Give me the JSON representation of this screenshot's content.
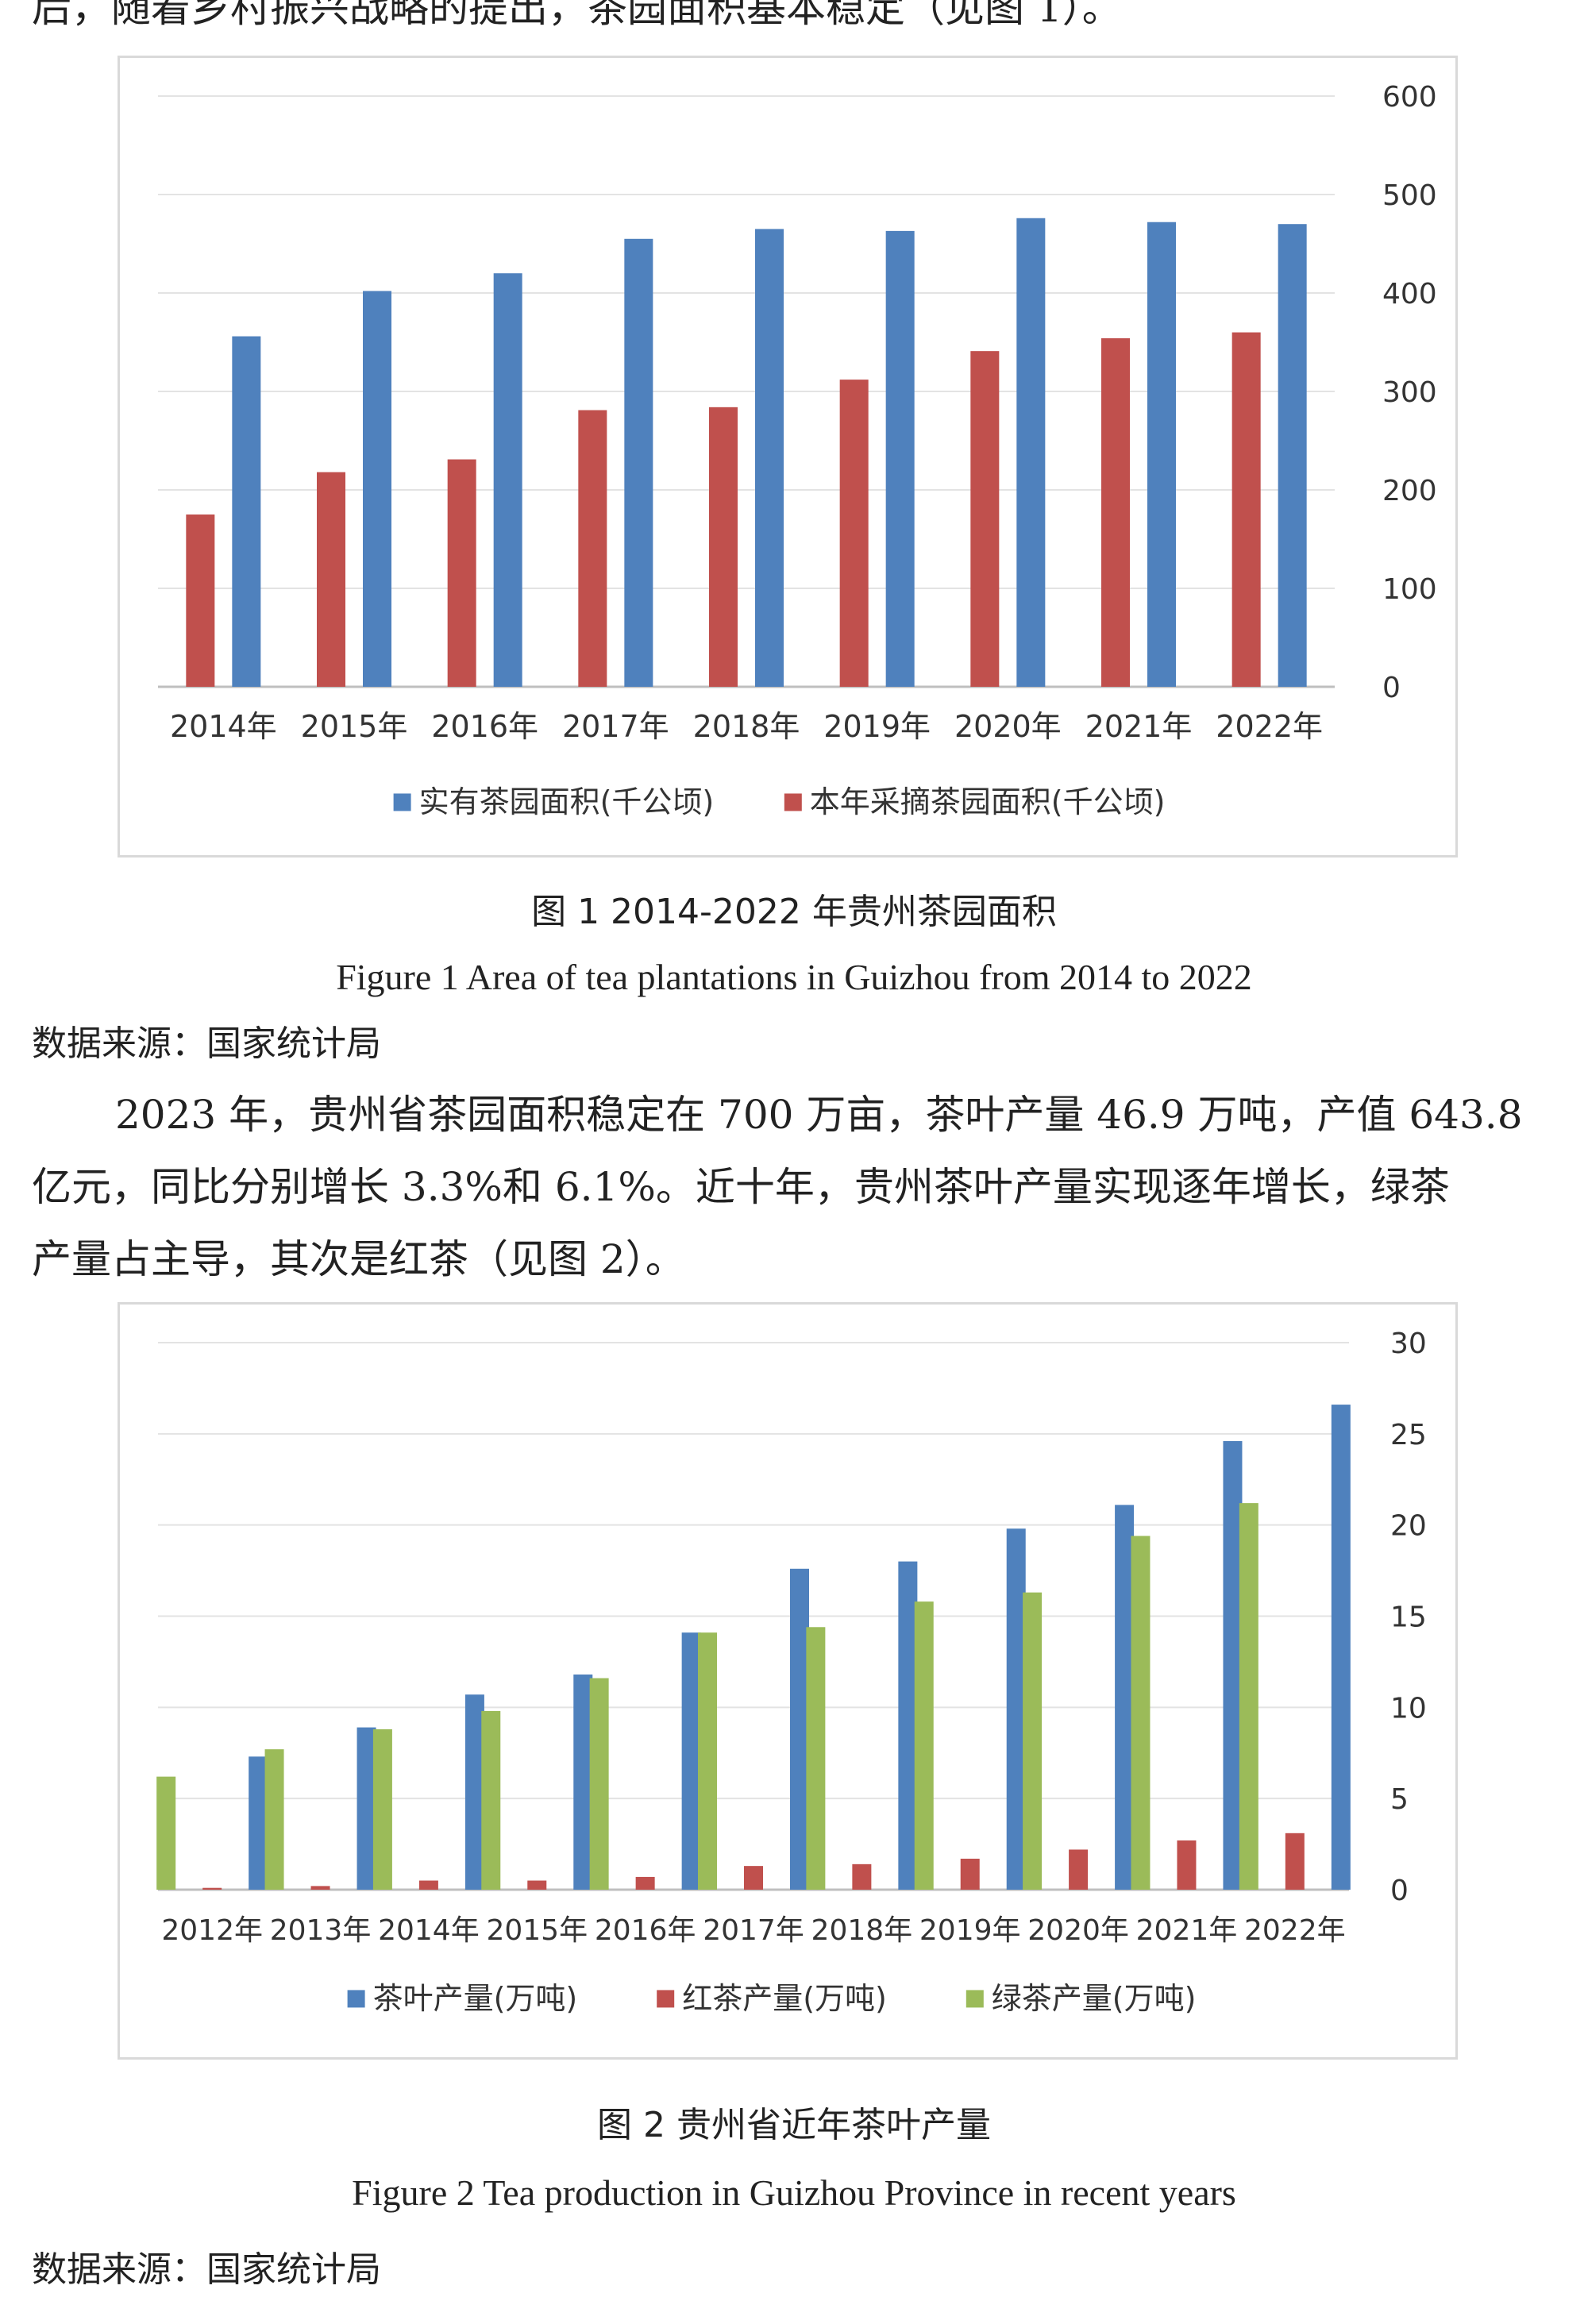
{
  "top_text": "后，随着乡村振兴战略的提出，茶园面积基本稳定（见图 1）。",
  "figure1": {
    "caption_cn": "图 1 2014-2022 年贵州茶园面积",
    "caption_en": "Figure 1 Area of tea plantations in Guizhou from 2014 to 2022",
    "source": "数据来源：国家统计局"
  },
  "paragraph": {
    "line1": "2023 年，贵州省茶园面积稳定在 700 万亩，茶叶产量 46.9 万吨，产值 643.8",
    "line2": "亿元，同比分别增长 3.3%和 6.1%。近十年，贵州茶叶产量实现逐年增长，绿茶",
    "line3": "产量占主导，其次是红茶（见图 2）。"
  },
  "figure2": {
    "caption_cn": "图 2 贵州省近年茶叶产量",
    "caption_en": "Figure 2 Tea production in Guizhou Province in recent years",
    "source": "数据来源：国家统计局"
  },
  "chart_data": [
    {
      "type": "bar",
      "title": "",
      "categories": [
        "2014年",
        "2015年",
        "2016年",
        "2017年",
        "2018年",
        "2019年",
        "2020年",
        "2021年",
        "2022年"
      ],
      "series": [
        {
          "name": "本年采摘茶园面积(千公顷)",
          "color": "#c0504d",
          "values": [
            175,
            218,
            231,
            281,
            284,
            312,
            341,
            354,
            360
          ]
        },
        {
          "name": "实有茶园面积(千公顷)",
          "color": "#4f81bd",
          "values": [
            356,
            402,
            420,
            455,
            465,
            463,
            476,
            472,
            470
          ]
        }
      ],
      "legend_order": [
        "实有茶园面积(千公顷)",
        "本年采摘茶园面积(千公顷)"
      ],
      "y_axis": {
        "side": "right",
        "ylim": [
          0,
          600
        ],
        "ticks": [
          0,
          100,
          200,
          300,
          400,
          500,
          600
        ]
      },
      "grid": true,
      "legend_position": "bottom"
    },
    {
      "type": "bar",
      "title": "",
      "categories": [
        "2012年",
        "2013年",
        "2014年",
        "2015年",
        "2016年",
        "2017年",
        "2018年",
        "2019年",
        "2020年",
        "2021年",
        "2022年"
      ],
      "series": [
        {
          "name": "绿茶产量(万吨)",
          "color": "#9bbb59",
          "values": [
            6.2,
            7.7,
            8.8,
            9.8,
            11.6,
            14.1,
            14.4,
            15.8,
            16.3,
            19.4,
            21.2
          ]
        },
        {
          "name": "红茶产量(万吨)",
          "color": "#c0504d",
          "values": [
            0.1,
            0.2,
            0.5,
            0.5,
            0.7,
            1.3,
            1.4,
            1.7,
            2.2,
            2.7,
            3.1
          ]
        },
        {
          "name": "茶叶产量(万吨)",
          "color": "#4f81bd",
          "values": [
            7.3,
            8.9,
            10.7,
            11.8,
            14.1,
            17.6,
            18.0,
            19.8,
            21.1,
            24.6,
            26.6
          ]
        }
      ],
      "legend_order": [
        "茶叶产量(万吨)",
        "红茶产量(万吨)",
        "绿茶产量(万吨)"
      ],
      "y_axis": {
        "side": "right",
        "ylim": [
          0,
          30
        ],
        "ticks": [
          0,
          5,
          10,
          15,
          20,
          25,
          30
        ]
      },
      "grid": true,
      "legend_position": "bottom"
    }
  ]
}
